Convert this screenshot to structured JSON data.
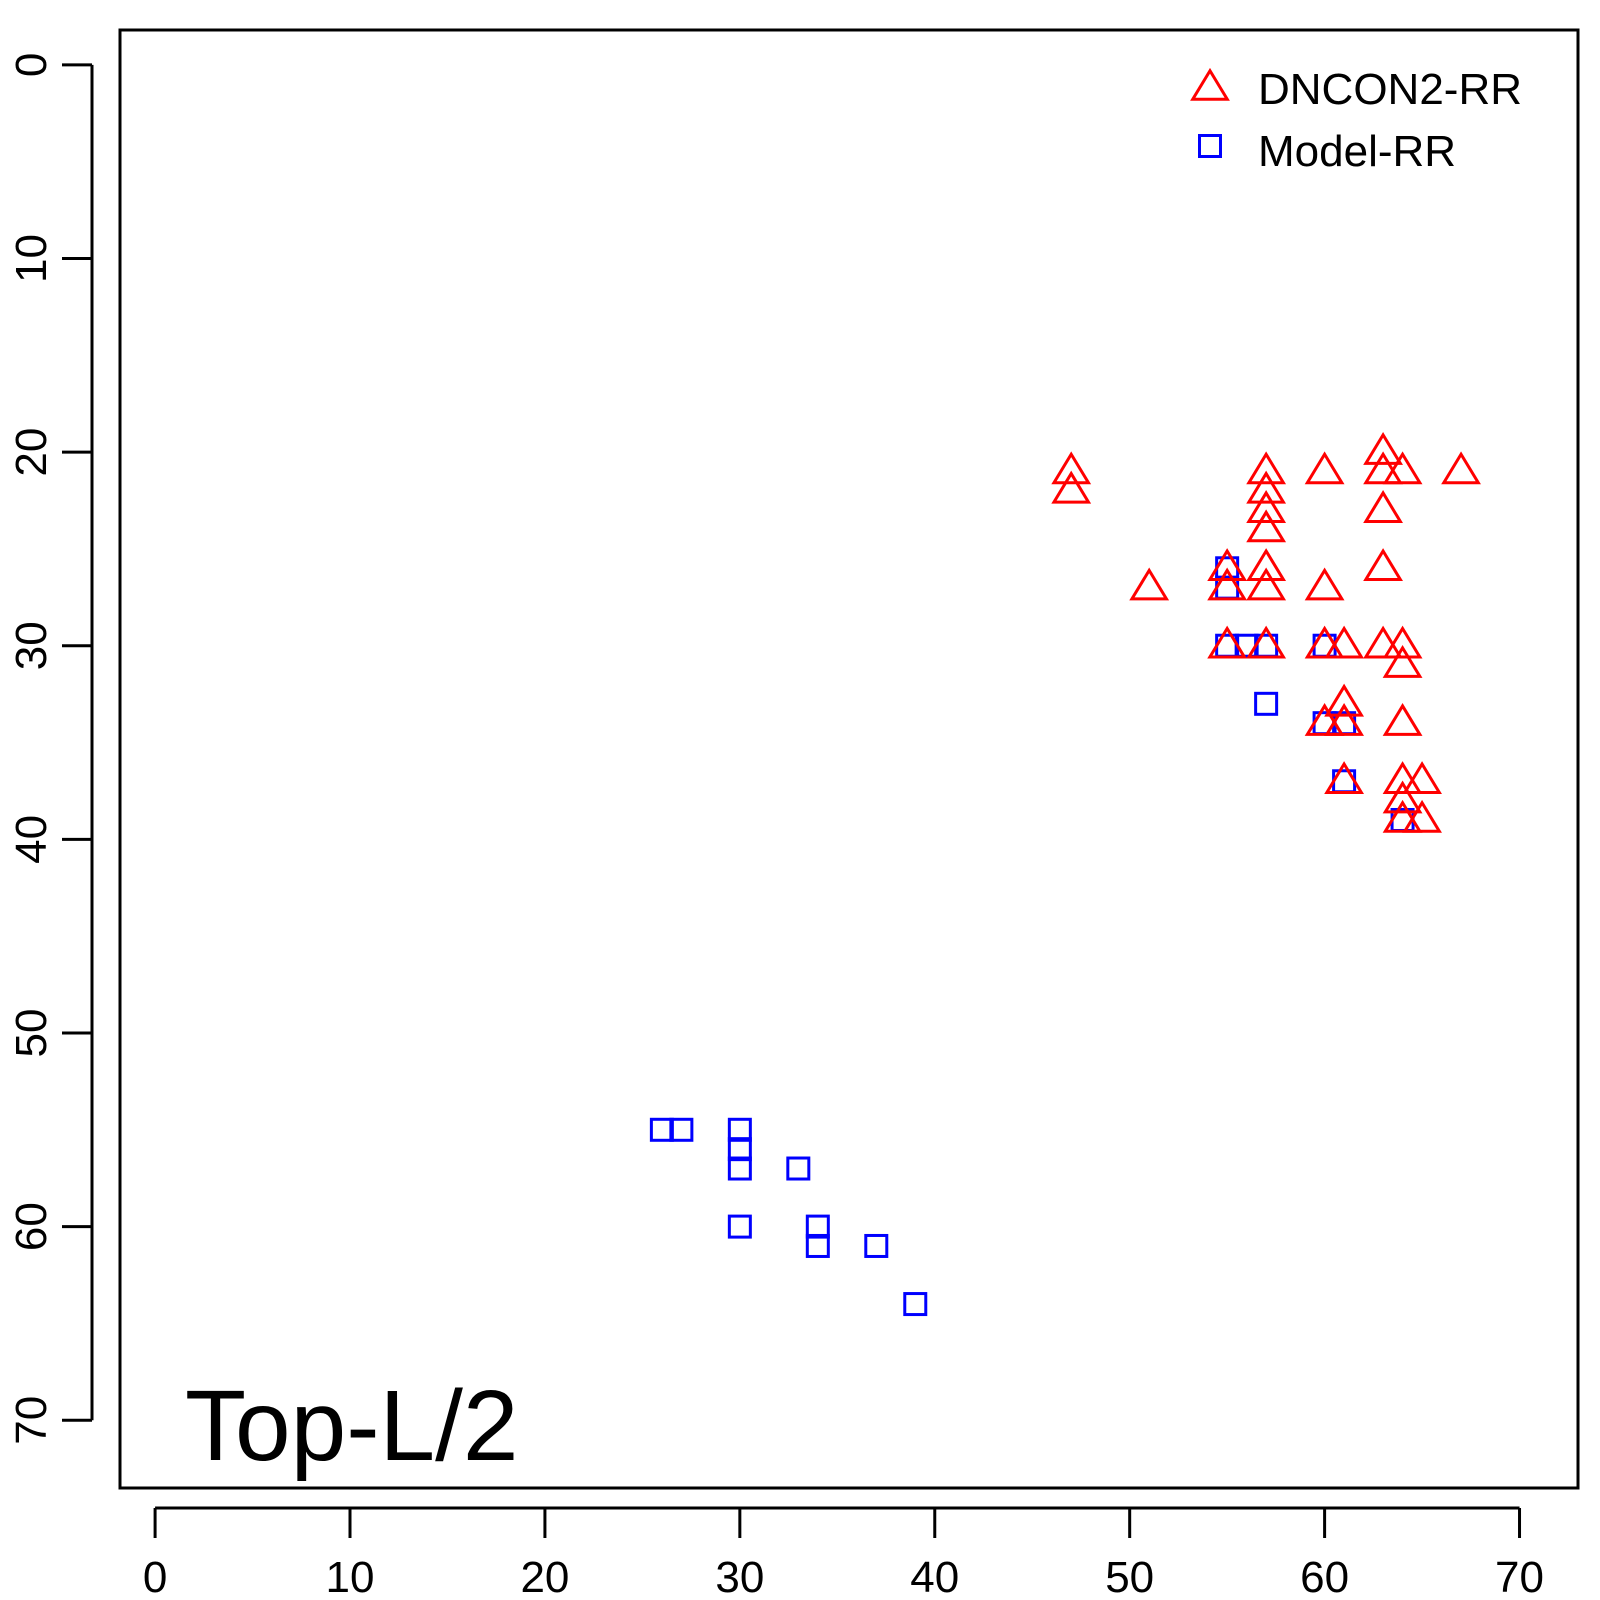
{
  "chart_data": {
    "type": "scatter",
    "title": "",
    "xlabel": "",
    "ylabel": "",
    "xlim": [
      -1.8,
      73
    ],
    "ylim": [
      -1.8,
      73.5
    ],
    "y_reversed": true,
    "grid": false,
    "x_ticks": [
      0,
      10,
      20,
      30,
      40,
      50,
      60,
      70
    ],
    "y_ticks": [
      0,
      10,
      20,
      30,
      40,
      50,
      60,
      70
    ],
    "legend": {
      "placement": "top-right"
    },
    "annotation": {
      "text": "Top-L/2",
      "placement": "bottom-left"
    },
    "series": [
      {
        "name": "DNCON2-RR",
        "marker": "triangle",
        "color": "#ff0000",
        "points": [
          [
            47,
            21
          ],
          [
            47,
            22
          ],
          [
            51,
            27
          ],
          [
            55,
            26
          ],
          [
            55,
            27
          ],
          [
            55,
            30
          ],
          [
            57,
            21
          ],
          [
            57,
            22
          ],
          [
            57,
            23
          ],
          [
            57,
            24
          ],
          [
            57,
            26
          ],
          [
            57,
            27
          ],
          [
            57,
            30
          ],
          [
            60,
            21
          ],
          [
            60,
            27
          ],
          [
            60,
            30
          ],
          [
            60,
            34
          ],
          [
            61,
            30
          ],
          [
            61,
            33
          ],
          [
            61,
            34
          ],
          [
            61,
            37
          ],
          [
            63,
            20
          ],
          [
            63,
            21
          ],
          [
            63,
            23
          ],
          [
            63,
            26
          ],
          [
            63,
            30
          ],
          [
            64,
            21
          ],
          [
            64,
            30
          ],
          [
            64,
            31
          ],
          [
            64,
            34
          ],
          [
            64,
            37
          ],
          [
            64,
            38
          ],
          [
            64,
            39
          ],
          [
            65,
            37
          ],
          [
            65,
            39
          ],
          [
            67,
            21
          ]
        ]
      },
      {
        "name": "Model-RR",
        "marker": "square",
        "color": "#0000ff",
        "points": [
          [
            26,
            55
          ],
          [
            27,
            55
          ],
          [
            30,
            55
          ],
          [
            30,
            56
          ],
          [
            30,
            57
          ],
          [
            30,
            60
          ],
          [
            33,
            57
          ],
          [
            34,
            60
          ],
          [
            34,
            61
          ],
          [
            37,
            61
          ],
          [
            39,
            64
          ],
          [
            55,
            26
          ],
          [
            55,
            27
          ],
          [
            55,
            30
          ],
          [
            56,
            30
          ],
          [
            57,
            30
          ],
          [
            57,
            33
          ],
          [
            60,
            30
          ],
          [
            60,
            34
          ],
          [
            61,
            34
          ],
          [
            61,
            37
          ],
          [
            64,
            39
          ]
        ]
      }
    ]
  }
}
